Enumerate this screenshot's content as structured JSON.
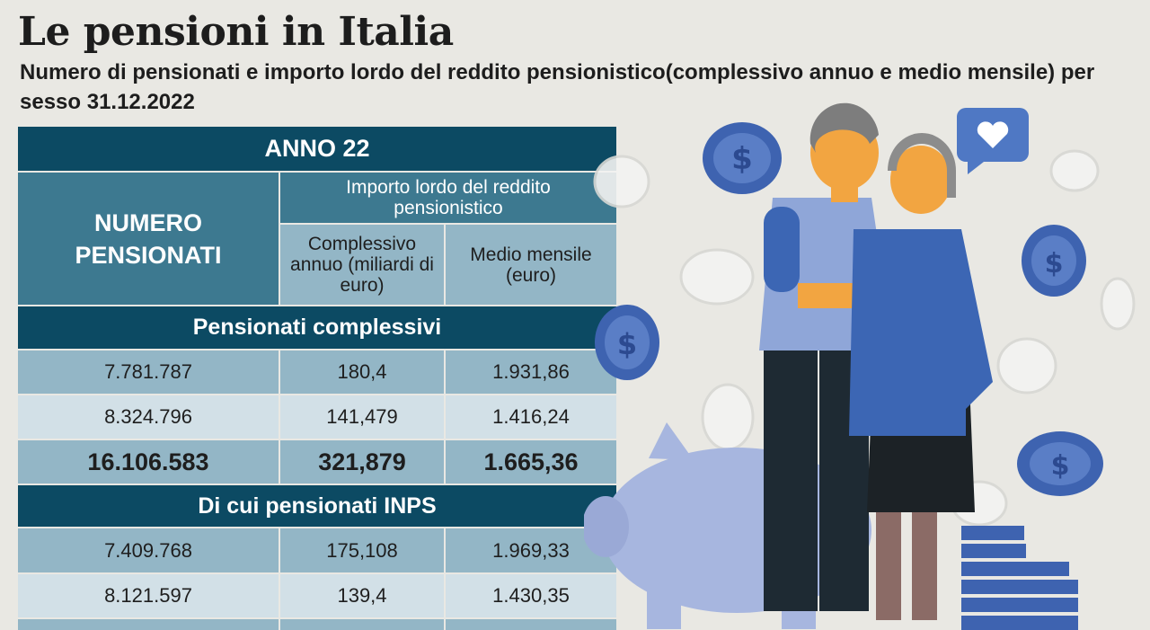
{
  "header": {
    "title": "Le pensioni in Italia",
    "subtitle": "Numero di pensionati e importo lordo del reddito pensionistico(complessivo annuo e medio mensile) per sesso 31.12.2022"
  },
  "table": {
    "year_header": "ANNO 22",
    "col_numero": "NUMERO PENSIONATI",
    "col_importo": "Importo lordo del reddito pensionistico",
    "col_complessivo": "Complessivo annuo (miliardi di euro)",
    "col_medio": "Medio mensile (euro)",
    "sections": [
      {
        "label": "Pensionati complessivi",
        "rows": [
          {
            "numero": "7.781.787",
            "complessivo": "180,4",
            "medio": "1.931,86"
          },
          {
            "numero": "8.324.796",
            "complessivo": "141,479",
            "medio": "1.416,24"
          },
          {
            "numero": "16.106.583",
            "complessivo": "321,879",
            "medio": "1.665,36"
          }
        ]
      },
      {
        "label": "Di cui pensionati INPS",
        "rows": [
          {
            "numero": "7.409.768",
            "complessivo": "175,108",
            "medio": "1.969,33"
          },
          {
            "numero": "8.121.597",
            "complessivo": "139,4",
            "medio": "1.430,35"
          }
        ]
      }
    ]
  },
  "chart_data": {
    "type": "table",
    "title": "Le pensioni in Italia",
    "subtitle": "Numero di pensionati e importo lordo del reddito pensionistico(complessivo annuo e medio mensile) per sesso 31.12.2022",
    "columns": [
      "NUMERO PENSIONATI",
      "Complessivo annuo (miliardi di euro)",
      "Medio mensile (euro)"
    ],
    "groups": [
      {
        "label": "Pensionati complessivi",
        "rows": [
          [
            7781787,
            180.4,
            1931.86
          ],
          [
            8324796,
            141.479,
            1416.24
          ],
          [
            16106583,
            321.879,
            1665.36
          ]
        ]
      },
      {
        "label": "Di cui pensionati INPS",
        "rows": [
          [
            7409768,
            175.108,
            1969.33
          ],
          [
            8121597,
            139.4,
            1430.35
          ]
        ]
      }
    ]
  },
  "colors": {
    "dark": "#0c4a63",
    "mid": "#3d7990",
    "light": "#93b6c6",
    "pale": "#d2e0e7",
    "background": "#e9e8e3"
  },
  "illustration": {
    "icons": [
      "elderly-couple-illustration",
      "piggy-bank-icon",
      "dollar-coin-icon",
      "heart-speech-bubble-icon",
      "coin-stack-icon"
    ]
  }
}
